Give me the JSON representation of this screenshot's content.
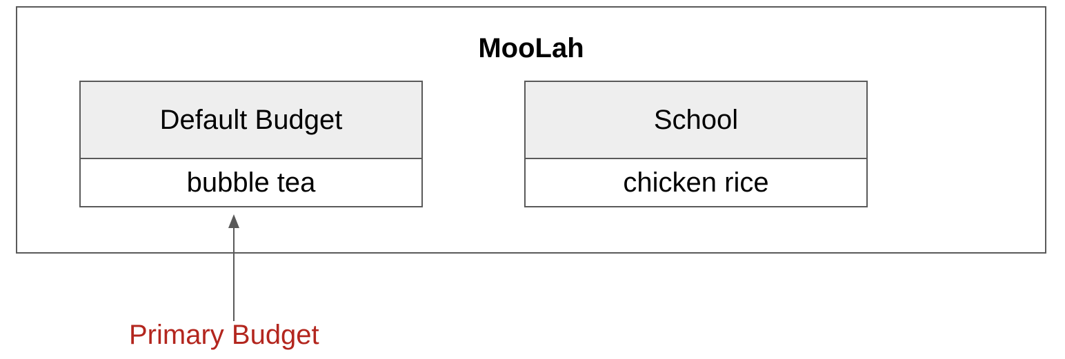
{
  "app": {
    "title": "MooLah"
  },
  "budgets": [
    {
      "name": "Default Budget",
      "expense": "bubble tea"
    },
    {
      "name": "School",
      "expense": "chicken rice"
    }
  ],
  "annotation": {
    "label": "Primary Budget",
    "color": "#b3261e"
  },
  "colors": {
    "border": "#595959",
    "header_fill": "#eeeeee",
    "arrow": "#595959"
  }
}
